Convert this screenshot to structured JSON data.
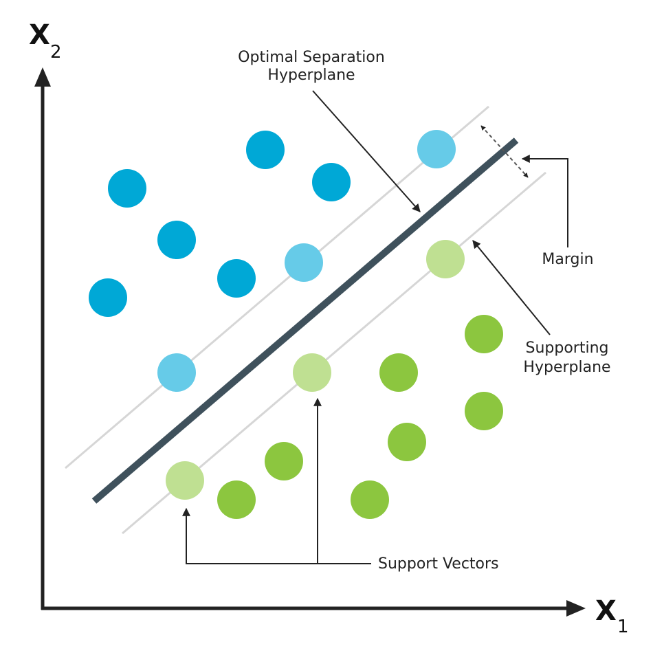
{
  "axes": {
    "y_label": "X",
    "y_subscript": "2",
    "x_label": "X",
    "x_subscript": "1"
  },
  "labels": {
    "optimal_line1": "Optimal Separation",
    "optimal_line2": "Hyperplane",
    "margin": "Margin",
    "supporting_line1": "Supporting",
    "supporting_line2": "Hyperplane",
    "support_vectors": "Support Vectors"
  },
  "colors": {
    "class_a": "#00a8d6",
    "class_a_support": "#66cbe8",
    "class_b": "#8cc63f",
    "class_b_support": "#bfe092",
    "hyperplane": "#3f515c",
    "supporting_hyperplane": "#d6d6d6",
    "axis": "#222222"
  }
}
